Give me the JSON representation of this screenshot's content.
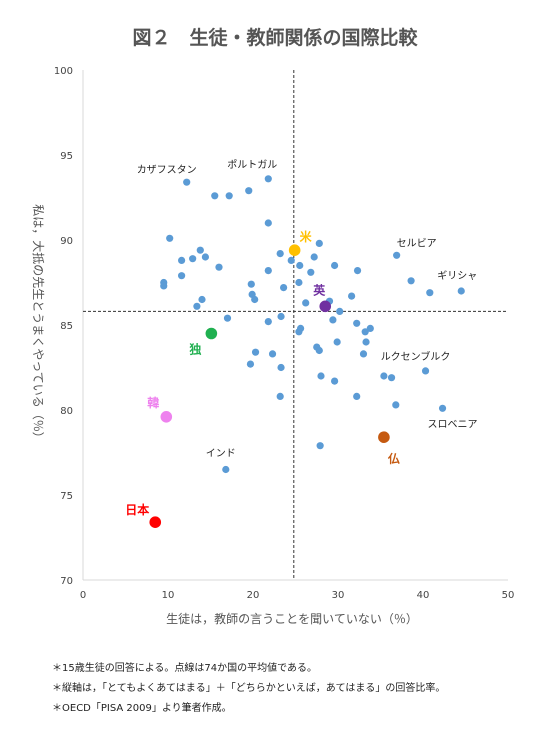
{
  "chart_data": {
    "type": "scatter",
    "title": "図２　生徒・教師関係の国際比較",
    "xlabel": "生徒は，教師の言うことを聞いていない（％）",
    "ylabel": "私は，大抵の先生とうまくやっている（％）",
    "xlim": [
      0,
      50
    ],
    "ylim": [
      70,
      100
    ],
    "xticks": [
      0,
      10,
      20,
      30,
      40,
      50
    ],
    "yticks": [
      70,
      75,
      80,
      85,
      90,
      95,
      100
    ],
    "grid": false,
    "average_lines": {
      "x": 24.8,
      "y": 85.8
    },
    "default_point_color": "#5b9bd5",
    "points": [
      {
        "x": 12.2,
        "y": 93.4
      },
      {
        "x": 15.5,
        "y": 92.6
      },
      {
        "x": 17.2,
        "y": 92.6
      },
      {
        "x": 19.5,
        "y": 92.9
      },
      {
        "x": 21.8,
        "y": 93.6
      },
      {
        "x": 10.2,
        "y": 90.1
      },
      {
        "x": 13.8,
        "y": 89.4
      },
      {
        "x": 12.9,
        "y": 88.9
      },
      {
        "x": 11.6,
        "y": 88.8
      },
      {
        "x": 14.4,
        "y": 89.0
      },
      {
        "x": 16.0,
        "y": 88.4
      },
      {
        "x": 11.6,
        "y": 87.9
      },
      {
        "x": 9.5,
        "y": 87.5
      },
      {
        "x": 9.5,
        "y": 87.3
      },
      {
        "x": 14.0,
        "y": 86.5
      },
      {
        "x": 13.4,
        "y": 86.1
      },
      {
        "x": 19.8,
        "y": 87.4
      },
      {
        "x": 19.9,
        "y": 86.8
      },
      {
        "x": 20.2,
        "y": 86.5
      },
      {
        "x": 21.8,
        "y": 91.0
      },
      {
        "x": 23.2,
        "y": 89.2
      },
      {
        "x": 21.8,
        "y": 88.2
      },
      {
        "x": 23.6,
        "y": 87.2
      },
      {
        "x": 24.5,
        "y": 88.8
      },
      {
        "x": 25.5,
        "y": 88.5
      },
      {
        "x": 27.2,
        "y": 89.0
      },
      {
        "x": 27.8,
        "y": 89.8
      },
      {
        "x": 26.8,
        "y": 88.1
      },
      {
        "x": 29.6,
        "y": 88.5
      },
      {
        "x": 32.3,
        "y": 88.2
      },
      {
        "x": 25.4,
        "y": 87.5
      },
      {
        "x": 29.0,
        "y": 86.4
      },
      {
        "x": 26.2,
        "y": 86.3
      },
      {
        "x": 31.6,
        "y": 86.7
      },
      {
        "x": 30.2,
        "y": 85.8
      },
      {
        "x": 29.4,
        "y": 85.3
      },
      {
        "x": 32.2,
        "y": 85.1
      },
      {
        "x": 33.8,
        "y": 84.8
      },
      {
        "x": 33.2,
        "y": 84.6
      },
      {
        "x": 33.3,
        "y": 84.0
      },
      {
        "x": 33.0,
        "y": 83.3
      },
      {
        "x": 25.6,
        "y": 84.8
      },
      {
        "x": 25.4,
        "y": 84.6
      },
      {
        "x": 27.5,
        "y": 83.7
      },
      {
        "x": 27.8,
        "y": 83.5
      },
      {
        "x": 29.9,
        "y": 84.0
      },
      {
        "x": 21.8,
        "y": 85.2
      },
      {
        "x": 23.3,
        "y": 85.5
      },
      {
        "x": 17.0,
        "y": 85.4
      },
      {
        "x": 20.3,
        "y": 83.4
      },
      {
        "x": 22.3,
        "y": 83.3
      },
      {
        "x": 19.7,
        "y": 82.7
      },
      {
        "x": 23.3,
        "y": 82.5
      },
      {
        "x": 28.0,
        "y": 82.0
      },
      {
        "x": 29.6,
        "y": 81.7
      },
      {
        "x": 23.2,
        "y": 80.8
      },
      {
        "x": 35.4,
        "y": 82.0
      },
      {
        "x": 36.3,
        "y": 81.9
      },
      {
        "x": 40.3,
        "y": 82.3
      },
      {
        "x": 32.2,
        "y": 80.8
      },
      {
        "x": 36.8,
        "y": 80.3
      },
      {
        "x": 42.3,
        "y": 80.1
      },
      {
        "x": 27.9,
        "y": 77.9
      },
      {
        "x": 16.8,
        "y": 76.5
      },
      {
        "x": 36.9,
        "y": 89.1
      },
      {
        "x": 38.6,
        "y": 87.6
      },
      {
        "x": 40.8,
        "y": 86.9
      },
      {
        "x": 44.5,
        "y": 87.0
      }
    ],
    "highlighted": [
      {
        "label": "日本",
        "x": 8.5,
        "y": 73.4,
        "color": "#ff0000"
      },
      {
        "label": "韓",
        "x": 9.8,
        "y": 79.6,
        "color": "#ee82ee"
      },
      {
        "label": "独",
        "x": 15.1,
        "y": 84.5,
        "color": "#20b050"
      },
      {
        "label": "米",
        "x": 24.9,
        "y": 89.4,
        "color": "#ffc000"
      },
      {
        "label": "英",
        "x": 28.5,
        "y": 86.1,
        "color": "#7030a0"
      },
      {
        "label": "仏",
        "x": 35.4,
        "y": 78.4,
        "color": "#c55a11"
      }
    ],
    "annotations": [
      {
        "label": "カザフスタン",
        "x": 12.2,
        "y": 93.4
      },
      {
        "label": "ポルトガル",
        "x": 21.8,
        "y": 93.6
      },
      {
        "label": "セルビア",
        "x": 36.9,
        "y": 89.1
      },
      {
        "label": "ギリシャ",
        "x": 44.5,
        "y": 87.0
      },
      {
        "label": "ルクセンブルク",
        "x": 40.3,
        "y": 82.3
      },
      {
        "label": "スロベニア",
        "x": 42.3,
        "y": 80.1
      },
      {
        "label": "インド",
        "x": 16.8,
        "y": 76.5
      }
    ]
  },
  "notes": [
    "＊15歳生徒の回答による。点線は74か国の平均値である。",
    "＊縦軸は，「とてもよくあてはまる」＋「どちらかといえば，あてはまる」の回答比率。",
    "＊OECD「PISA 2009」より筆者作成。"
  ]
}
